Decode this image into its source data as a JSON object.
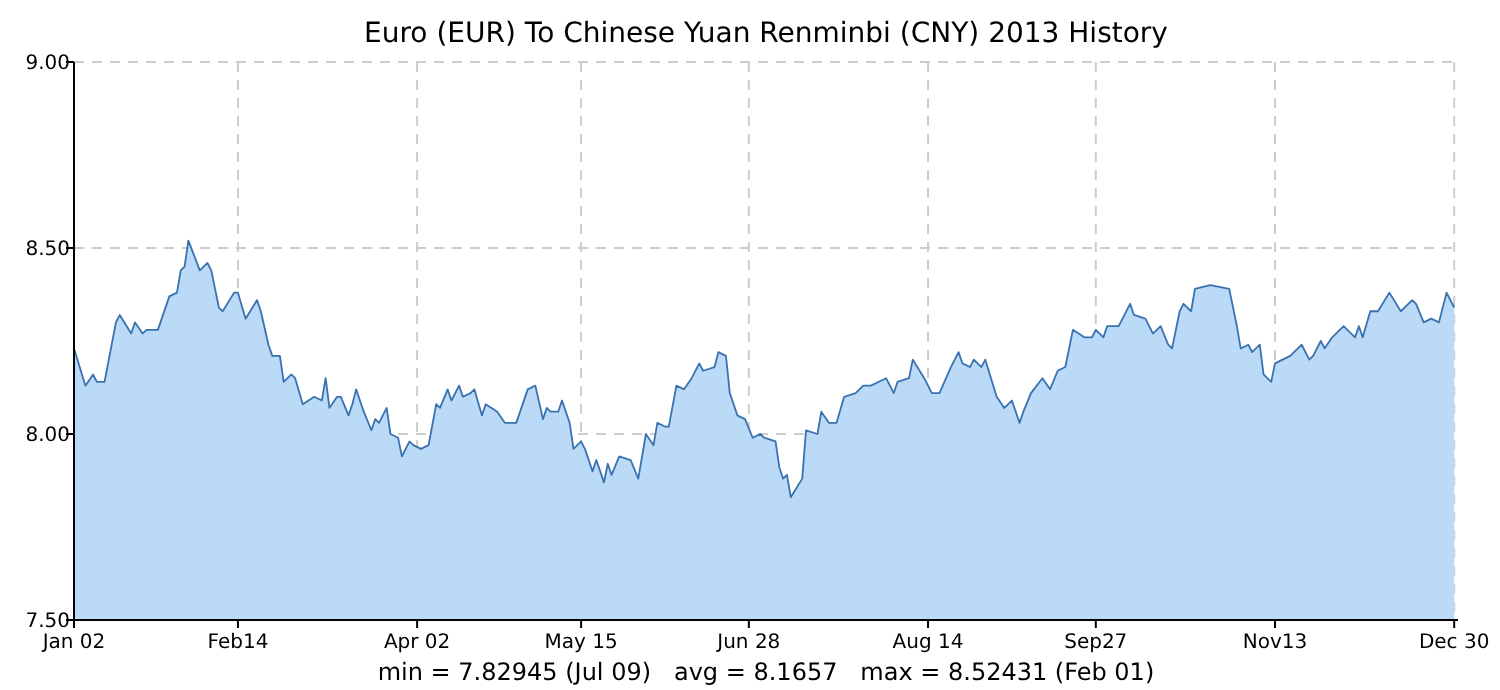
{
  "chart_data": {
    "type": "area",
    "title": "Euro (EUR) To Chinese Yuan Renminbi (CNY) 2013 History",
    "x": [
      "2013-01-02",
      "2013-01-05",
      "2013-01-07",
      "2013-01-08",
      "2013-01-10",
      "2013-01-13",
      "2013-01-14",
      "2013-01-17",
      "2013-01-18",
      "2013-01-20",
      "2013-01-21",
      "2013-01-24",
      "2013-01-27",
      "2013-01-29",
      "2013-01-30",
      "2013-01-31",
      "2013-02-01",
      "2013-02-04",
      "2013-02-06",
      "2013-02-07",
      "2013-02-09",
      "2013-02-10",
      "2013-02-13",
      "2013-02-14",
      "2013-02-16",
      "2013-02-19",
      "2013-02-20",
      "2013-02-22",
      "2013-02-23",
      "2013-02-25",
      "2013-02-26",
      "2013-02-28",
      "2013-03-01",
      "2013-03-03",
      "2013-03-06",
      "2013-03-08",
      "2013-03-09",
      "2013-03-10",
      "2013-03-12",
      "2013-03-13",
      "2013-03-15",
      "2013-03-16",
      "2013-03-17",
      "2013-03-19",
      "2013-03-21",
      "2013-03-22",
      "2013-03-23",
      "2013-03-25",
      "2013-03-26",
      "2013-03-28",
      "2013-03-29",
      "2013-03-31",
      "2013-04-01",
      "2013-04-03",
      "2013-04-05",
      "2013-04-07",
      "2013-04-08",
      "2013-04-10",
      "2013-04-11",
      "2013-04-13",
      "2013-04-14",
      "2013-04-16",
      "2013-04-17",
      "2013-04-19",
      "2013-04-20",
      "2013-04-23",
      "2013-04-25",
      "2013-04-28",
      "2013-05-01",
      "2013-05-03",
      "2013-05-05",
      "2013-05-06",
      "2013-05-07",
      "2013-05-09",
      "2013-05-10",
      "2013-05-12",
      "2013-05-13",
      "2013-05-15",
      "2013-05-16",
      "2013-05-18",
      "2013-05-19",
      "2013-05-21",
      "2013-05-22",
      "2013-05-23",
      "2013-05-25",
      "2013-05-28",
      "2013-05-30",
      "2013-06-01",
      "2013-06-03",
      "2013-06-04",
      "2013-06-06",
      "2013-06-07",
      "2013-06-09",
      "2013-06-11",
      "2013-06-13",
      "2013-06-15",
      "2013-06-16",
      "2013-06-19",
      "2013-06-20",
      "2013-06-22",
      "2013-06-23",
      "2013-06-25",
      "2013-06-27",
      "2013-06-29",
      "2013-07-01",
      "2013-07-02",
      "2013-07-05",
      "2013-07-06",
      "2013-07-07",
      "2013-07-08",
      "2013-07-09",
      "2013-07-12",
      "2013-07-13",
      "2013-07-16",
      "2013-07-17",
      "2013-07-19",
      "2013-07-21",
      "2013-07-23",
      "2013-07-26",
      "2013-07-28",
      "2013-07-30",
      "2013-08-03",
      "2013-08-05",
      "2013-08-06",
      "2013-08-09",
      "2013-08-10",
      "2013-08-13",
      "2013-08-15",
      "2013-08-17",
      "2013-08-20",
      "2013-08-22",
      "2013-08-23",
      "2013-08-25",
      "2013-08-26",
      "2013-08-28",
      "2013-08-29",
      "2013-09-01",
      "2013-09-03",
      "2013-09-05",
      "2013-09-07",
      "2013-09-08",
      "2013-09-10",
      "2013-09-13",
      "2013-09-15",
      "2013-09-17",
      "2013-09-19",
      "2013-09-21",
      "2013-09-24",
      "2013-09-26",
      "2013-09-27",
      "2013-09-29",
      "2013-09-30",
      "2013-10-03",
      "2013-10-06",
      "2013-10-07",
      "2013-10-10",
      "2013-10-12",
      "2013-10-14",
      "2013-10-16",
      "2013-10-17",
      "2013-10-19",
      "2013-10-20",
      "2013-10-22",
      "2013-10-23",
      "2013-10-27",
      "2013-11-01",
      "2013-11-03",
      "2013-11-04",
      "2013-11-06",
      "2013-11-07",
      "2013-11-09",
      "2013-11-10",
      "2013-11-12",
      "2013-11-13",
      "2013-11-15",
      "2013-11-17",
      "2013-11-19",
      "2013-11-20",
      "2013-11-22",
      "2013-11-23",
      "2013-11-25",
      "2013-11-26",
      "2013-11-28",
      "2013-12-01",
      "2013-12-04",
      "2013-12-05",
      "2013-12-06",
      "2013-12-08",
      "2013-12-10",
      "2013-12-13",
      "2013-12-16",
      "2013-12-19",
      "2013-12-20",
      "2013-12-22",
      "2013-12-24",
      "2013-12-26",
      "2013-12-28",
      "2013-12-30"
    ],
    "series": [
      {
        "color": "#3a72b0",
        "values": [
          8.23,
          8.13,
          8.16,
          8.14,
          8.14,
          8.3,
          8.32,
          8.27,
          8.3,
          8.27,
          8.28,
          8.28,
          8.37,
          8.38,
          8.44,
          8.45,
          8.52,
          8.44,
          8.46,
          8.44,
          8.34,
          8.33,
          8.38,
          8.38,
          8.31,
          8.36,
          8.33,
          8.24,
          8.21,
          8.21,
          8.14,
          8.16,
          8.15,
          8.08,
          8.1,
          8.09,
          8.15,
          8.07,
          8.1,
          8.1,
          8.05,
          8.08,
          8.12,
          8.06,
          8.01,
          8.04,
          8.03,
          8.07,
          8.0,
          7.99,
          7.94,
          7.98,
          7.97,
          7.96,
          7.97,
          8.08,
          8.07,
          8.12,
          8.09,
          8.13,
          8.1,
          8.11,
          8.12,
          8.05,
          8.08,
          8.06,
          8.03,
          8.03,
          8.12,
          8.13,
          8.04,
          8.07,
          8.06,
          8.06,
          8.09,
          8.03,
          7.96,
          7.98,
          7.96,
          7.9,
          7.93,
          7.87,
          7.92,
          7.89,
          7.94,
          7.93,
          7.88,
          8.0,
          7.97,
          8.03,
          8.02,
          8.02,
          8.13,
          8.12,
          8.15,
          8.19,
          8.17,
          8.18,
          8.22,
          8.21,
          8.11,
          8.05,
          8.04,
          7.99,
          8.0,
          7.99,
          7.98,
          7.91,
          7.88,
          7.89,
          7.83,
          7.88,
          8.01,
          8.0,
          8.06,
          8.03,
          8.03,
          8.1,
          8.11,
          8.13,
          8.13,
          8.15,
          8.11,
          8.14,
          8.15,
          8.2,
          8.15,
          8.11,
          8.11,
          8.18,
          8.22,
          8.19,
          8.18,
          8.2,
          8.18,
          8.2,
          8.1,
          8.07,
          8.09,
          8.03,
          8.06,
          8.11,
          8.15,
          8.12,
          8.17,
          8.18,
          8.28,
          8.26,
          8.26,
          8.28,
          8.26,
          8.29,
          8.29,
          8.35,
          8.32,
          8.31,
          8.27,
          8.29,
          8.24,
          8.23,
          8.33,
          8.35,
          8.33,
          8.39,
          8.4,
          8.39,
          8.29,
          8.23,
          8.24,
          8.22,
          8.24,
          8.16,
          8.14,
          8.19,
          8.2,
          8.21,
          8.23,
          8.24,
          8.2,
          8.21,
          8.25,
          8.23,
          8.26,
          8.29,
          8.26,
          8.29,
          8.26,
          8.33,
          8.33,
          8.38,
          8.33,
          8.36,
          8.35,
          8.3,
          8.31,
          8.3,
          8.38,
          8.34
        ]
      }
    ],
    "xlim": [
      "2013-01-02",
      "2013-12-31"
    ],
    "xticks": [
      {
        "value": "2013-01-02",
        "label": "Jan 02"
      },
      {
        "value": "2013-02-14",
        "label": "Feb14"
      },
      {
        "value": "2013-04-02",
        "label": "Apr 02"
      },
      {
        "value": "2013-05-15",
        "label": "May 15"
      },
      {
        "value": "2013-06-28",
        "label": "Jun 28"
      },
      {
        "value": "2013-08-14",
        "label": "Aug 14"
      },
      {
        "value": "2013-09-27",
        "label": "Sep27"
      },
      {
        "value": "2013-11-13",
        "label": "Nov13"
      },
      {
        "value": "2013-12-30",
        "label": "Dec 30"
      }
    ],
    "ylim": [
      7.5,
      9
    ],
    "yticks": [
      {
        "value": 7.5,
        "label": "7.50"
      },
      {
        "value": 8,
        "label": "8.00"
      },
      {
        "value": 8.5,
        "label": "8.50"
      },
      {
        "value": 9,
        "label": "9.00"
      }
    ],
    "grid": true,
    "line_style": "solid",
    "annotations": [
      "min = 7.82945 (Jul 09)   avg = 8.1657   max = 8.52431 (Feb 01)"
    ]
  }
}
